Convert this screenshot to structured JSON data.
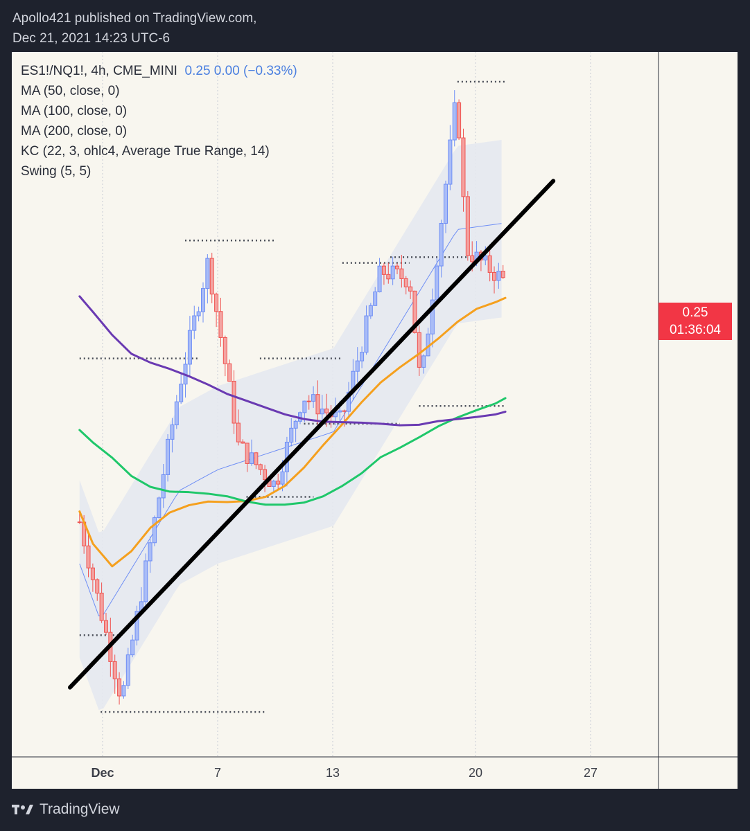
{
  "header": {
    "line1": "Apollo421 published on TradingView.com,",
    "line2": "Dec 21, 2021 14:23 UTC-6"
  },
  "legend": {
    "symbol": "ES1!/NQ1!, 4h, CME_MINI",
    "values": "0.25  0.00 (−0.33%)",
    "ma50": "MA (50, close, 0)",
    "ma100": "MA (100, close, 0)",
    "ma200": "MA (200, close, 0)",
    "kc": "KC (22, 3, ohlc4, Average True Range, 14)",
    "swing": "Swing (5, 5)"
  },
  "price_label": {
    "price": "0.25",
    "countdown": "01:36:04"
  },
  "footer": {
    "brand": "TradingView"
  },
  "colors": {
    "up": "#6e8ef5",
    "down": "#ef5350",
    "ma50": "#f5a01e",
    "ma100": "#1fc76a",
    "ma200": "#6a3ab2",
    "kc_fill": "#e4e8f0",
    "trendline": "#000000",
    "background": "#f8f6ef"
  },
  "chart_data": {
    "type": "line",
    "title": "",
    "x_ticks": [
      {
        "label": "Dec",
        "bold": true
      },
      {
        "label": "7",
        "bold": false
      },
      {
        "label": "13",
        "bold": false
      },
      {
        "label": "20",
        "bold": false
      },
      {
        "label": "27",
        "bold": false
      }
    ],
    "series": [
      {
        "name": "MA (50, close, 0)",
        "color": "#f5a01e",
        "points": [
          [
            -1.2,
            0.272
          ],
          [
            -0.5,
            0.2658
          ],
          [
            0.5,
            0.2615
          ],
          [
            1.5,
            0.2644
          ],
          [
            2.5,
            0.2689
          ],
          [
            3.5,
            0.2718
          ],
          [
            4.5,
            0.2732
          ],
          [
            5.5,
            0.2739
          ],
          [
            6.5,
            0.2738
          ],
          [
            7.5,
            0.274
          ],
          [
            8.5,
            0.2748
          ],
          [
            9.5,
            0.2769
          ],
          [
            10.5,
            0.2804
          ],
          [
            11.5,
            0.2847
          ],
          [
            12.5,
            0.2887
          ],
          [
            13.5,
            0.2929
          ],
          [
            14.5,
            0.2967
          ],
          [
            15.5,
            0.2996
          ],
          [
            16.5,
            0.3022
          ],
          [
            17.5,
            0.3051
          ],
          [
            18.5,
            0.3083
          ],
          [
            19.5,
            0.3108
          ],
          [
            20.5,
            0.3121
          ],
          [
            21,
            0.3129
          ]
        ]
      },
      {
        "name": "MA (100, close, 0)",
        "color": "#1fc76a",
        "points": [
          [
            -1.2,
            0.2876
          ],
          [
            -0.5,
            0.2852
          ],
          [
            0.5,
            0.2823
          ],
          [
            1.5,
            0.2788
          ],
          [
            2.5,
            0.2767
          ],
          [
            3.5,
            0.2758
          ],
          [
            4.5,
            0.2757
          ],
          [
            5.5,
            0.2754
          ],
          [
            6.5,
            0.2749
          ],
          [
            7.5,
            0.2739
          ],
          [
            8.5,
            0.2733
          ],
          [
            9.5,
            0.2733
          ],
          [
            10.5,
            0.2737
          ],
          [
            11.5,
            0.2749
          ],
          [
            12.5,
            0.2769
          ],
          [
            13.5,
            0.2793
          ],
          [
            14.5,
            0.2824
          ],
          [
            15.5,
            0.2842
          ],
          [
            16.5,
            0.2862
          ],
          [
            17.5,
            0.2883
          ],
          [
            18.5,
            0.29
          ],
          [
            19.5,
            0.2914
          ],
          [
            20.5,
            0.2927
          ],
          [
            21,
            0.2937
          ]
        ]
      },
      {
        "name": "MA (200, close, 0)",
        "color": "#6a3ab2",
        "points": [
          [
            -1.2,
            0.3132
          ],
          [
            -0.5,
            0.3102
          ],
          [
            0.5,
            0.3058
          ],
          [
            1.5,
            0.3022
          ],
          [
            2.5,
            0.3005
          ],
          [
            3.5,
            0.2993
          ],
          [
            4.5,
            0.2979
          ],
          [
            5.5,
            0.2963
          ],
          [
            6.5,
            0.2945
          ],
          [
            7.5,
            0.2932
          ],
          [
            8.5,
            0.2919
          ],
          [
            9.5,
            0.2906
          ],
          [
            10.5,
            0.2897
          ],
          [
            11.5,
            0.2892
          ],
          [
            12.5,
            0.2891
          ],
          [
            13.5,
            0.289
          ],
          [
            14.5,
            0.2888
          ],
          [
            15.5,
            0.2885
          ],
          [
            16.5,
            0.2886
          ],
          [
            17.5,
            0.2893
          ],
          [
            18.5,
            0.2897
          ],
          [
            19.5,
            0.2901
          ],
          [
            20.5,
            0.2906
          ],
          [
            21,
            0.2911
          ]
        ]
      },
      {
        "name": "Trend line",
        "color": "#000000",
        "points": [
          [
            -1.7,
            0.2383
          ],
          [
            23.5,
            0.3353
          ]
        ]
      }
    ],
    "swing_levels": [
      {
        "x": [
          -1.2,
          1.0
        ],
        "y": 0.2483
      },
      {
        "x": [
          -0.1,
          8.5
        ],
        "y": 0.2336
      },
      {
        "x": [
          4.3,
          9.0
        ],
        "y": 0.3239
      },
      {
        "x": [
          -1.2,
          5.0
        ],
        "y": 0.3013
      },
      {
        "x": [
          8.2,
          12.5
        ],
        "y": 0.3013
      },
      {
        "x": [
          12.5,
          16.0
        ],
        "y": 0.3196
      },
      {
        "x": [
          15.0,
          19.0
        ],
        "y": 0.3207
      },
      {
        "x": [
          18.5,
          21.0
        ],
        "y": 0.3543
      },
      {
        "x": [
          16.5,
          21.0
        ],
        "y": 0.2922
      },
      {
        "x": [
          10.5,
          15.5
        ],
        "y": 0.2888
      },
      {
        "x": [
          7.5,
          11.0
        ],
        "y": 0.2748
      }
    ],
    "price_range": [
      0.225,
      0.36
    ]
  }
}
